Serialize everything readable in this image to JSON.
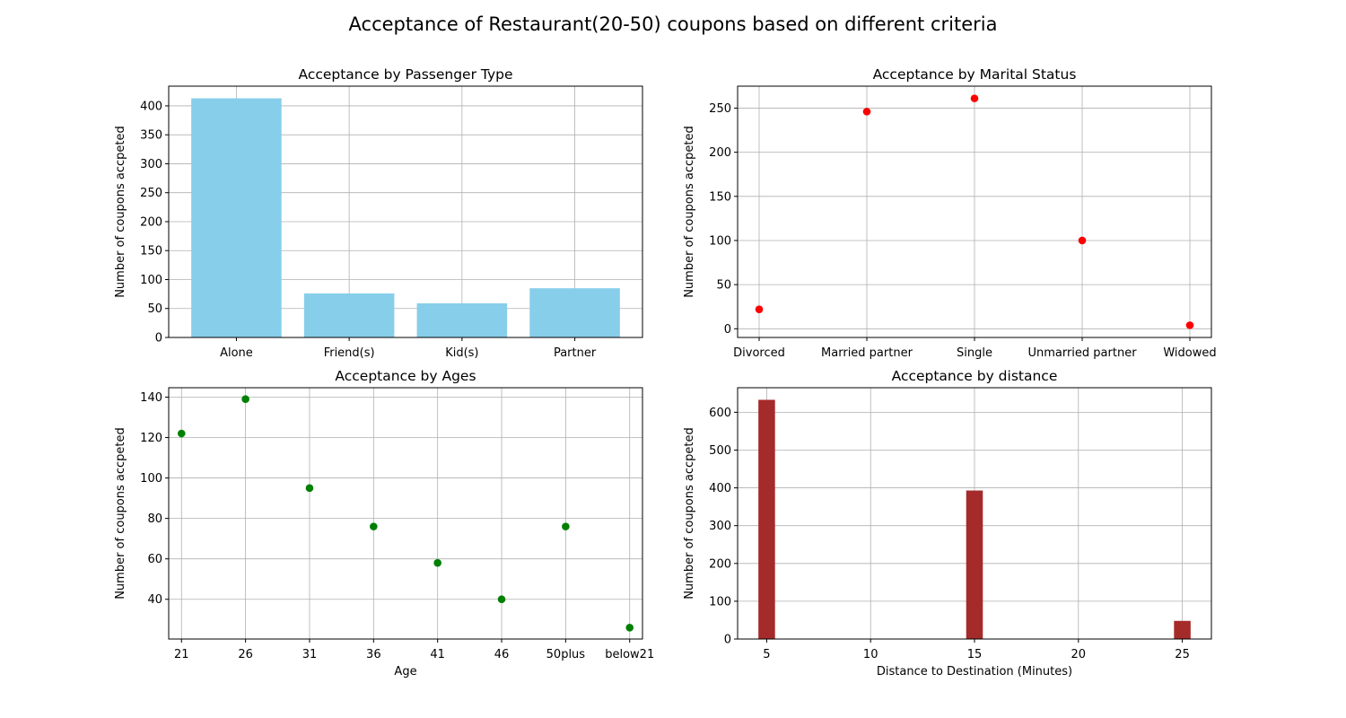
{
  "figure": {
    "suptitle": "Acceptance of Restaurant(20-50) coupons based on different criteria"
  },
  "chart_data": [
    {
      "type": "bar",
      "title": "Acceptance by Passenger Type",
      "xlabel": "",
      "ylabel": "Number of coupons accpeted",
      "categories": [
        "Alone",
        "Friend(s)",
        "Kid(s)",
        "Partner"
      ],
      "values": [
        413,
        76,
        59,
        85
      ],
      "ylim": [
        0,
        434
      ],
      "yticks": [
        0,
        50,
        100,
        150,
        200,
        250,
        300,
        350,
        400
      ],
      "grid": true,
      "color": "#87ceeb"
    },
    {
      "type": "scatter",
      "title": "Acceptance by Marital Status",
      "xlabel": "",
      "ylabel": "Number of coupons accpeted",
      "categories": [
        "Divorced",
        "Married partner",
        "Single",
        "Unmarried partner",
        "Widowed"
      ],
      "values": [
        22,
        246,
        261,
        100,
        4
      ],
      "ylim": [
        -9.85,
        274.85
      ],
      "yticks": [
        0,
        50,
        100,
        150,
        200,
        250
      ],
      "grid": true,
      "color": "#ff0000"
    },
    {
      "type": "scatter",
      "title": "Acceptance by Ages",
      "xlabel": "Age",
      "ylabel": "Number of coupons accpeted",
      "categories": [
        "21",
        "26",
        "31",
        "36",
        "41",
        "46",
        "50plus",
        "below21"
      ],
      "values": [
        122,
        139,
        95,
        76,
        58,
        40,
        76,
        26
      ],
      "ylim": [
        20.35,
        144.65
      ],
      "yticks": [
        40,
        60,
        80,
        100,
        120,
        140
      ],
      "grid": true,
      "color": "#008000"
    },
    {
      "type": "bar",
      "title": "Acceptance by distance",
      "xlabel": "Distance to Destination (Minutes)",
      "ylabel": "Number of coupons accpeted",
      "x": [
        5,
        15,
        25
      ],
      "values": [
        633,
        393,
        48
      ],
      "bar_width": 0.8,
      "xlim": [
        3.6,
        26.4
      ],
      "xticks": [
        5,
        10,
        15,
        20,
        25
      ],
      "ylim": [
        0,
        665
      ],
      "yticks": [
        0,
        100,
        200,
        300,
        400,
        500,
        600
      ],
      "grid": true,
      "color": "#a52a2a"
    }
  ]
}
